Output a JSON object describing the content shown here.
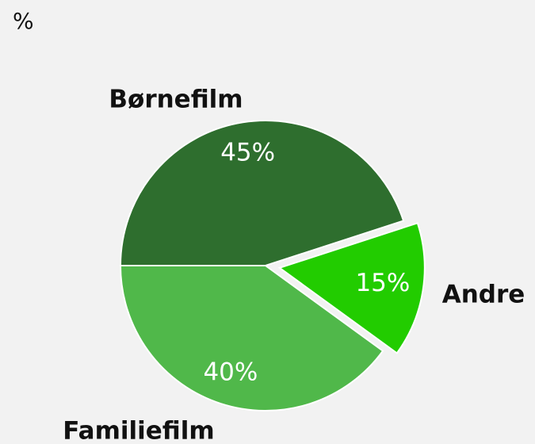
{
  "chart_data": {
    "type": "pie",
    "title": "%",
    "categories": [
      "Børnefilm",
      "Andre",
      "Familiefilm"
    ],
    "values": [
      45,
      15,
      40
    ],
    "value_labels": [
      "45%",
      "15%",
      "40%"
    ],
    "colors": [
      "#2e6e2e",
      "#22cc00",
      "#50b84a"
    ],
    "exploded": [
      false,
      true,
      false
    ]
  }
}
